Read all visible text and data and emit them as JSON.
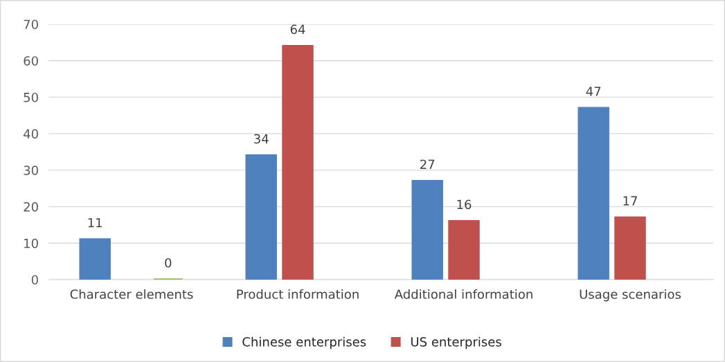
{
  "chart_data": {
    "type": "bar",
    "categories": [
      "Character elements",
      "Product information",
      "Additional information",
      "Usage scenarios"
    ],
    "series": [
      {
        "name": "Chinese enterprises",
        "color": "#4f81bd",
        "values": [
          11,
          34,
          27,
          47
        ]
      },
      {
        "name": "US enterprises",
        "color": "#c0504d",
        "values": [
          null,
          64,
          16,
          17
        ]
      },
      {
        "color": "#9bbb59",
        "values": [
          0,
          null,
          null,
          null
        ]
      }
    ],
    "ylim": [
      0,
      70
    ],
    "yticks": [
      0,
      10,
      20,
      30,
      40,
      50,
      60,
      70
    ],
    "grid": "y",
    "legend": "bottom",
    "data_labels": true
  }
}
